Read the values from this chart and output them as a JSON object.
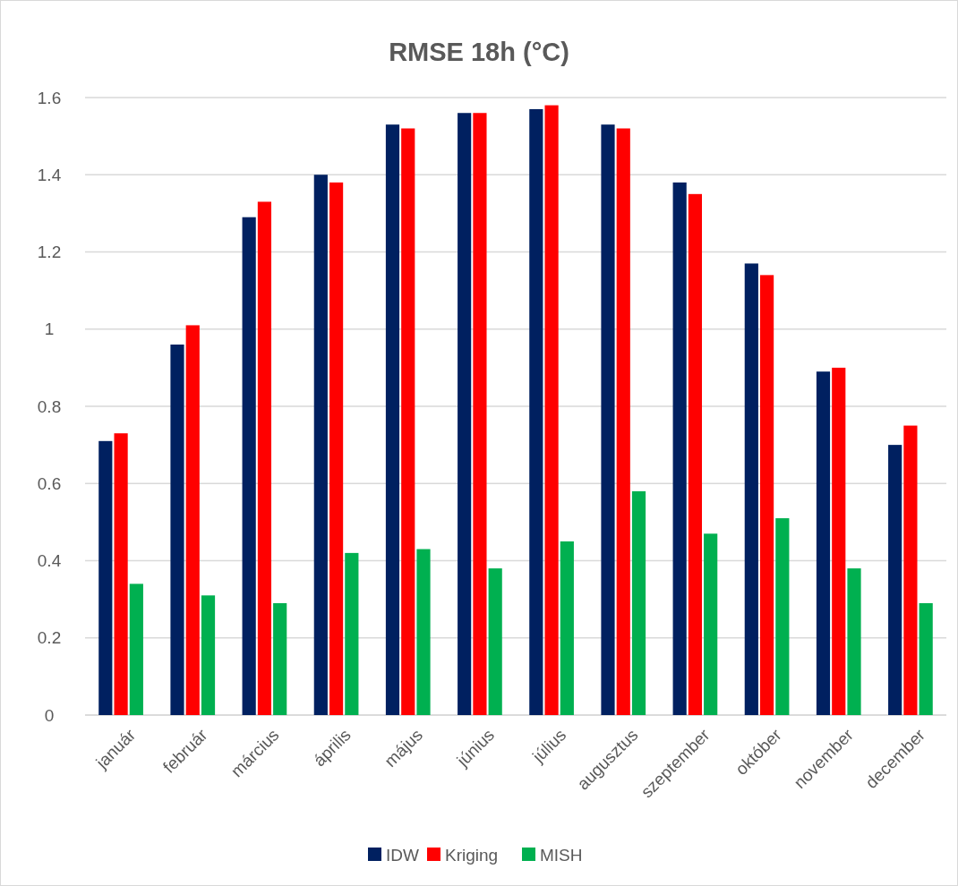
{
  "chart_data": {
    "type": "bar",
    "title": "RMSE 18h (°C)",
    "categories": [
      "január",
      "február",
      "március",
      "április",
      "május",
      "június",
      "július",
      "augusztus",
      "szeptember",
      "október",
      "november",
      "december"
    ],
    "series": [
      {
        "name": "IDW",
        "color": "#002060",
        "values": [
          0.71,
          0.96,
          1.29,
          1.4,
          1.53,
          1.56,
          1.57,
          1.53,
          1.38,
          1.17,
          0.89,
          0.7
        ]
      },
      {
        "name": "Kriging",
        "color": "#ff0000",
        "values": [
          0.73,
          1.01,
          1.33,
          1.38,
          1.52,
          1.56,
          1.58,
          1.52,
          1.35,
          1.14,
          0.9,
          0.75
        ]
      },
      {
        "name": "MISH",
        "color": "#00b050",
        "values": [
          0.34,
          0.31,
          0.29,
          0.42,
          0.43,
          0.38,
          0.45,
          0.58,
          0.47,
          0.51,
          0.38,
          0.29
        ]
      }
    ],
    "ylim": [
      0,
      1.6
    ],
    "yticks": [
      0,
      0.2,
      0.4,
      0.6,
      0.8,
      1,
      1.2,
      1.4,
      1.6
    ],
    "grid": "y",
    "legend": "bottom"
  }
}
